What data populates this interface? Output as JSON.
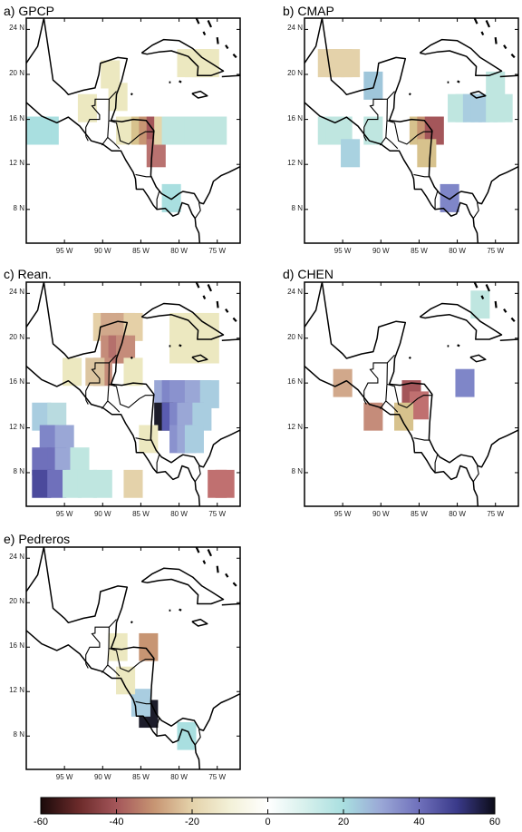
{
  "panels": [
    {
      "label": "a) GPCP",
      "cells": [
        [
          97,
          15,
          "#a9dfe0"
        ],
        [
          98,
          15,
          "#a9dfe0"
        ],
        [
          99,
          15,
          "#a9dfe0"
        ],
        [
          100,
          15,
          "#a9dfe0"
        ],
        [
          89,
          20,
          "#ece8c0"
        ],
        [
          92,
          17,
          "#ece8c0"
        ],
        [
          88,
          18,
          "#ece8c0"
        ],
        [
          87,
          15,
          "#ece8c0"
        ],
        [
          85,
          15,
          "#d7c28d"
        ],
        [
          84,
          15,
          "#c79573"
        ],
        [
          83,
          15,
          "#a4565a"
        ],
        [
          83,
          13,
          "#b97270"
        ],
        [
          82,
          15,
          "#e4d6ab"
        ],
        [
          81,
          15,
          "#bfe6e0"
        ],
        [
          80,
          15,
          "#bfe6e0"
        ],
        [
          79,
          15,
          "#bfe6e0"
        ],
        [
          78,
          15,
          "#bfe6e0"
        ],
        [
          77,
          15,
          "#bfe6e0"
        ],
        [
          76,
          15,
          "#bfe6e0"
        ],
        [
          75,
          15,
          "#bfe6e0"
        ],
        [
          81,
          9,
          "#a9dfe0"
        ],
        [
          79,
          21,
          "#ece8c0"
        ],
        [
          78,
          21,
          "#ece8c0"
        ],
        [
          77,
          21,
          "#ece8c0"
        ],
        [
          76,
          21,
          "#ece8c0"
        ]
      ]
    },
    {
      "label": "b) CMAP",
      "cells": [
        [
          97,
          21,
          "#e4d2aa"
        ],
        [
          96,
          21,
          "#e4d2aa"
        ],
        [
          95,
          21,
          "#e4d2aa"
        ],
        [
          94,
          21,
          "#e4d2aa"
        ],
        [
          91,
          19,
          "#9fc6da"
        ],
        [
          97,
          15,
          "#bfe6e0"
        ],
        [
          96,
          15,
          "#bfe6e0"
        ],
        [
          95,
          15,
          "#bfe6e0"
        ],
        [
          94,
          13,
          "#a9d2e0"
        ],
        [
          91,
          15,
          "#bfe6e0"
        ],
        [
          85,
          15,
          "#d7c28d"
        ],
        [
          84,
          15,
          "#c79573"
        ],
        [
          83,
          15,
          "#a4565a"
        ],
        [
          84,
          13,
          "#d7c28d"
        ],
        [
          80,
          17,
          "#bfe6e0"
        ],
        [
          79,
          17,
          "#bfe6e0"
        ],
        [
          78,
          17,
          "#a9cde0"
        ],
        [
          77,
          17,
          "#a9cde0"
        ],
        [
          76,
          17,
          "#a9cde0"
        ],
        [
          75,
          17,
          "#bfe6e0"
        ],
        [
          74,
          17,
          "#bfe6e0"
        ],
        [
          81,
          9,
          "#7f86c8"
        ],
        [
          75,
          19,
          "#bfe6e0"
        ]
      ]
    },
    {
      "label": "c) Rean.",
      "cells": [
        [
          90,
          21,
          "#e5d0a7"
        ],
        [
          89,
          21,
          "#d1a88b"
        ],
        [
          87,
          21,
          "#d1a88b"
        ],
        [
          86,
          21,
          "#e5d0a7"
        ],
        [
          89,
          19,
          "#c58c7a"
        ],
        [
          88,
          19,
          "#b5706c"
        ],
        [
          87,
          19,
          "#c58c7a"
        ],
        [
          90,
          17,
          "#c58c7a"
        ],
        [
          91,
          17,
          "#dcc5a0"
        ],
        [
          94,
          17,
          "#ece8c0"
        ],
        [
          86,
          17,
          "#ece8c0"
        ],
        [
          80,
          21,
          "#ece8c0"
        ],
        [
          79,
          21,
          "#ece8c0"
        ],
        [
          78,
          21,
          "#ece8c0"
        ],
        [
          77,
          21,
          "#ece8c0"
        ],
        [
          76,
          21,
          "#ece8c0"
        ],
        [
          80,
          19,
          "#ece8c0"
        ],
        [
          79,
          19,
          "#ece8c0"
        ],
        [
          78,
          19,
          "#ece8c0"
        ],
        [
          77,
          19,
          "#ece8c0"
        ],
        [
          76,
          19,
          "#ece8c0"
        ],
        [
          82,
          15,
          "#9aa7d6"
        ],
        [
          81,
          15,
          "#7f86c8"
        ],
        [
          80,
          15,
          "#8a92ce"
        ],
        [
          79,
          15,
          "#8a92ce"
        ],
        [
          78,
          15,
          "#9aa7d6"
        ],
        [
          77,
          15,
          "#9aa7d6"
        ],
        [
          76,
          15,
          "#a9cde0"
        ],
        [
          82,
          13,
          "#1c1c2a"
        ],
        [
          81,
          13,
          "#5a5cb0"
        ],
        [
          80,
          13,
          "#7f86c8"
        ],
        [
          79,
          13,
          "#9aa7d6"
        ],
        [
          78,
          13,
          "#9aa7d6"
        ],
        [
          77,
          13,
          "#a9cde0"
        ],
        [
          80,
          11,
          "#8a92ce"
        ],
        [
          79,
          11,
          "#9aa7d6"
        ],
        [
          78,
          11,
          "#a9cde0"
        ],
        [
          98,
          13,
          "#a9cde0"
        ],
        [
          96,
          13,
          "#b9dbe0"
        ],
        [
          97,
          11,
          "#7f86c8"
        ],
        [
          95,
          11,
          "#9aa7d6"
        ],
        [
          98,
          9,
          "#6f70bb"
        ],
        [
          96,
          9,
          "#6f70bb"
        ],
        [
          95,
          9,
          "#9aa7d6"
        ],
        [
          93,
          9,
          "#bfe6e0"
        ],
        [
          98,
          7,
          "#4b4a9c"
        ],
        [
          96,
          7,
          "#6f70bb"
        ],
        [
          94,
          7,
          "#bfe6e0"
        ],
        [
          92,
          7,
          "#bfe6e0"
        ],
        [
          90,
          7,
          "#bfe6e0"
        ],
        [
          84,
          11,
          "#ece8c0"
        ],
        [
          86,
          7,
          "#e4d2aa"
        ],
        [
          75,
          7,
          "#c07070"
        ],
        [
          74,
          7,
          "#c07070"
        ]
      ]
    },
    {
      "label": "d) CHEN",
      "cells": [
        [
          86,
          15,
          "#a4565a"
        ],
        [
          85,
          14,
          "#c07070"
        ],
        [
          87,
          13,
          "#d7c28d"
        ],
        [
          91,
          13,
          "#c58c7a"
        ],
        [
          95,
          16,
          "#d1a88b"
        ],
        [
          79,
          16,
          "#7f86c8"
        ],
        [
          77,
          23,
          "#bfe6e0"
        ]
      ]
    },
    {
      "label": "e) Pedreros",
      "cells": [
        [
          84,
          10,
          "#1c1c2a"
        ],
        [
          85,
          11,
          "#a9cde0"
        ],
        [
          79,
          8,
          "#a9dfe0"
        ],
        [
          84,
          16,
          "#c79573"
        ],
        [
          88,
          16,
          "#ece8c0"
        ],
        [
          87,
          13,
          "#ece8c0"
        ]
      ]
    }
  ],
  "axes": {
    "x_ticks": [
      "95  W",
      "90  W",
      "85  W",
      "80  W",
      "75  W"
    ],
    "x_values": [
      -95,
      -90,
      -85,
      -80,
      -75
    ],
    "y_ticks": [
      "24  N",
      "20  N",
      "16  N",
      "12  N",
      "8  N"
    ],
    "y_values": [
      24,
      20,
      16,
      12,
      8
    ],
    "lon_range": [
      -100,
      -72
    ],
    "lat_range": [
      5,
      25
    ]
  },
  "colorbar": {
    "ticks": [
      "-60",
      "-40",
      "-20",
      "0",
      "20",
      "40",
      "60"
    ],
    "range": [
      -60,
      60
    ],
    "stops": [
      "#1a0a0a",
      "#6b2a2a",
      "#a4565a",
      "#c79573",
      "#e4d2aa",
      "#f3f1d8",
      "#ffffff",
      "#d6f0ec",
      "#a9dfe0",
      "#9aa7d6",
      "#6f70bb",
      "#3a3a8a",
      "#0c0c18"
    ]
  }
}
